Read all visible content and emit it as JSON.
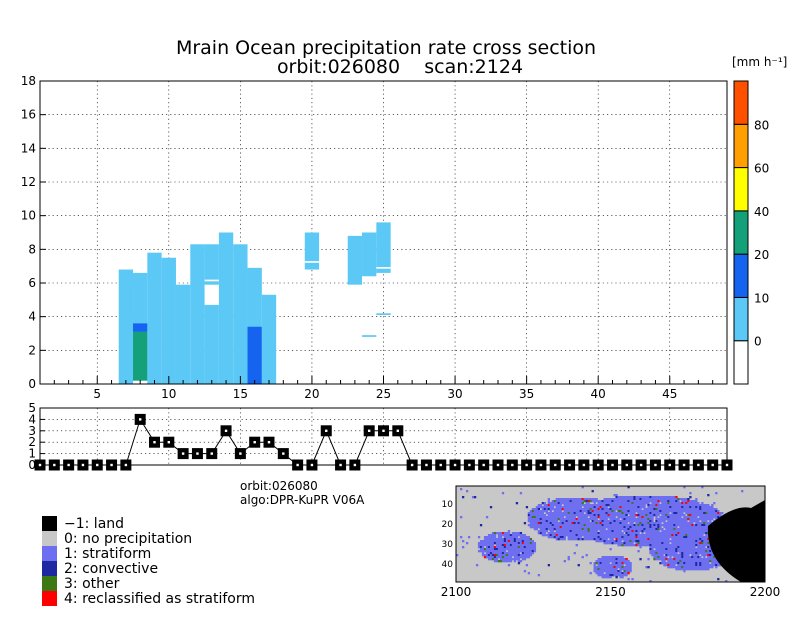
{
  "chart_data": [
    {
      "type": "heatmap",
      "title": "Mrain Ocean precipitation rate cross section",
      "subtitle": "orbit:026080    scan:2124",
      "xlabel": "",
      "ylabel": "",
      "xlim": [
        1,
        49
      ],
      "ylim": [
        0,
        18
      ],
      "x_ticks": [
        5,
        10,
        15,
        20,
        25,
        30,
        35,
        40,
        45
      ],
      "y_ticks": [
        0,
        2,
        4,
        6,
        8,
        10,
        12,
        14,
        16,
        18
      ],
      "grid": true,
      "colorbar": {
        "unit": "[mm h⁻¹]",
        "ticks": [
          "0",
          "10",
          "20",
          "40",
          "60",
          "80"
        ],
        "colors": [
          "#ffffff",
          "#5bc8f5",
          "#1464f0",
          "#14a078",
          "#ffff00",
          "#ffa000",
          "#ff5000"
        ]
      },
      "columns": [
        {
          "x": 7,
          "y0": 0.0,
          "y1": 6.8,
          "level": 1
        },
        {
          "x": 8,
          "y0": 0.2,
          "y1": 6.6,
          "level": 1
        },
        {
          "x": 8,
          "y0": 0.2,
          "y1": 3.1,
          "level": 3
        },
        {
          "x": 8,
          "y0": 3.1,
          "y1": 3.6,
          "level": 2
        },
        {
          "x": 9,
          "y0": 0.0,
          "y1": 7.8,
          "level": 1
        },
        {
          "x": 10,
          "y0": 0.0,
          "y1": 7.5,
          "level": 1
        },
        {
          "x": 11,
          "y0": 0.0,
          "y1": 5.9,
          "level": 1
        },
        {
          "x": 12,
          "y0": 0.0,
          "y1": 8.3,
          "level": 1
        },
        {
          "x": 13,
          "y0": 0.0,
          "y1": 8.3,
          "level": 1
        },
        {
          "x": 14,
          "y0": 0.0,
          "y1": 9.0,
          "level": 1
        },
        {
          "x": 15,
          "y0": 0.0,
          "y1": 8.3,
          "level": 1
        },
        {
          "x": 16,
          "y0": 0.0,
          "y1": 6.9,
          "level": 1
        },
        {
          "x": 16,
          "y0": 0.0,
          "y1": 3.4,
          "level": 2
        },
        {
          "x": 17,
          "y0": 0.0,
          "y1": 5.3,
          "level": 1
        },
        {
          "x": 20,
          "y0": 6.8,
          "y1": 9.0,
          "level": 1
        },
        {
          "x": 23,
          "y0": 5.9,
          "y1": 8.8,
          "level": 1
        },
        {
          "x": 24,
          "y0": 6.4,
          "y1": 9.0,
          "level": 1
        },
        {
          "x": 25,
          "y0": 6.6,
          "y1": 9.6,
          "level": 1
        },
        {
          "x": 24,
          "y0": 2.8,
          "y1": 2.9,
          "level": 1
        },
        {
          "x": 25,
          "y0": 4.1,
          "y1": 4.2,
          "level": 1
        }
      ],
      "gaps": [
        {
          "x": 13,
          "y0": 4.7,
          "y1": 5.9
        },
        {
          "x": 13,
          "y0": 6.1,
          "y1": 6.2
        },
        {
          "x": 20,
          "y0": 7.2,
          "y1": 7.3
        },
        {
          "x": 25,
          "y0": 6.85,
          "y1": 6.95
        }
      ]
    },
    {
      "type": "line",
      "title": "",
      "xlim": [
        1,
        49
      ],
      "ylim": [
        0,
        5
      ],
      "y_ticks": [
        0,
        1,
        2,
        3,
        4,
        5
      ],
      "grid": true,
      "x": [
        1,
        2,
        3,
        4,
        5,
        6,
        7,
        8,
        9,
        10,
        11,
        12,
        13,
        14,
        15,
        16,
        17,
        18,
        19,
        20,
        21,
        22,
        23,
        24,
        25,
        26,
        27,
        28,
        29,
        30,
        31,
        32,
        33,
        34,
        35,
        36,
        37,
        38,
        39,
        40,
        41,
        42,
        43,
        44,
        45,
        46,
        47,
        48,
        49
      ],
      "values": [
        0,
        0,
        0,
        0,
        0,
        0,
        0,
        4,
        2,
        2,
        1,
        1,
        1,
        3,
        1,
        2,
        2,
        1,
        0,
        0,
        3,
        0,
        0,
        3,
        3,
        3,
        0,
        0,
        0,
        0,
        0,
        0,
        0,
        0,
        0,
        0,
        0,
        0,
        0,
        0,
        0,
        0,
        0,
        0,
        0,
        0,
        0,
        0,
        0
      ]
    },
    {
      "type": "heatmap",
      "title": "",
      "x_ticks": [
        "2100",
        "2150",
        "2200"
      ],
      "y_ticks": [
        "10",
        "20",
        "30",
        "40"
      ],
      "xlim": [
        2100,
        2200
      ],
      "ylim": [
        1,
        49
      ],
      "categories": [
        "land",
        "no precipitation",
        "stratiform",
        "convective",
        "other",
        "reclassified as stratiform"
      ]
    }
  ],
  "info": {
    "orbit": "orbit:026080",
    "algo": "algo:DPR-KuPR V06A"
  },
  "legend": [
    {
      "label": "−1: land",
      "color": "#000000"
    },
    {
      "label": "0: no precipitation",
      "color": "#c8c8c8"
    },
    {
      "label": "1: stratiform",
      "color": "#6e6ef0"
    },
    {
      "label": "2: convective",
      "color": "#1e28a0"
    },
    {
      "label": "3: other",
      "color": "#3c7814"
    },
    {
      "label": "4: reclassified as stratiform",
      "color": "#ff0000"
    }
  ]
}
